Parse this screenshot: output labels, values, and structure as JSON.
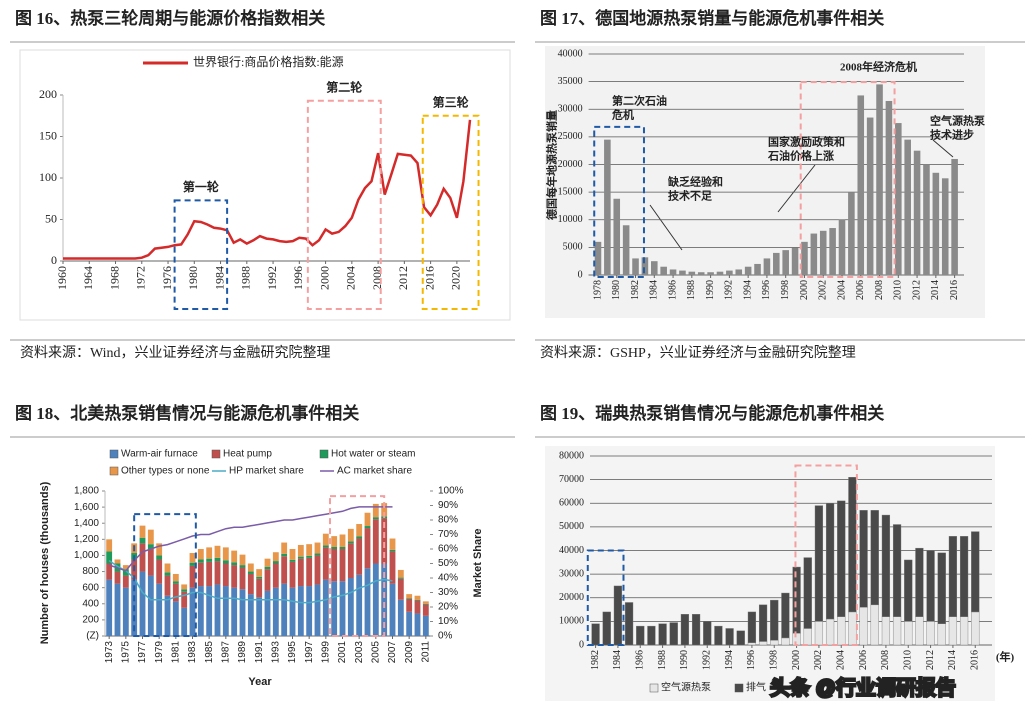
{
  "chart_data": [
    {
      "type": "line",
      "title": "图 16、热泵三轮周期与能源价格指数相关",
      "source": "资料来源：Wind，兴业证券经济与金融研究院整理",
      "x": [
        1960,
        1961,
        1962,
        1963,
        1964,
        1965,
        1966,
        1967,
        1968,
        1969,
        1970,
        1971,
        1972,
        1973,
        1974,
        1975,
        1976,
        1977,
        1978,
        1979,
        1980,
        1981,
        1982,
        1983,
        1984,
        1985,
        1986,
        1987,
        1988,
        1989,
        1990,
        1991,
        1992,
        1993,
        1994,
        1995,
        1996,
        1997,
        1998,
        1999,
        2000,
        2001,
        2002,
        2003,
        2004,
        2005,
        2006,
        2007,
        2008,
        2009,
        2010,
        2011,
        2012,
        2013,
        2014,
        2015,
        2016,
        2017,
        2018,
        2019,
        2020,
        2021,
        2022
      ],
      "series": [
        {
          "name": "世界银行:商品价格指数:能源",
          "color": "#d42a2a",
          "values": [
            3,
            3,
            3,
            3,
            3,
            3,
            3,
            3,
            3,
            3,
            3,
            3,
            4,
            7,
            15,
            16,
            17,
            19,
            20,
            32,
            48,
            47,
            44,
            40,
            39,
            37,
            22,
            26,
            21,
            25,
            30,
            27,
            26,
            24,
            23,
            24,
            28,
            27,
            19,
            25,
            38,
            33,
            35,
            42,
            52,
            74,
            88,
            96,
            130,
            80,
            104,
            129,
            128,
            127,
            118,
            65,
            55,
            68,
            87,
            76,
            52,
            96,
            170
          ]
        }
      ],
      "xlim": [
        1960,
        2022
      ],
      "xticks": [
        1960,
        1964,
        1968,
        1972,
        1976,
        1980,
        1984,
        1988,
        1992,
        1996,
        2000,
        2004,
        2008,
        2012,
        2016,
        2020
      ],
      "ylim": [
        0,
        200
      ],
      "yticks": [
        0,
        50,
        100,
        150,
        200
      ],
      "grid": false,
      "highlights": [
        {
          "label": "第一轮",
          "color": "#1f5aa6",
          "x": [
            1977,
            1985
          ],
          "top": 73
        },
        {
          "label": "第二轮",
          "color": "#f4a0a0",
          "x": [
            1997.3,
            2008.4
          ],
          "top": 193
        },
        {
          "label": "第三轮",
          "color": "#f5b800",
          "x": [
            2014.8,
            2023.3
          ],
          "top": 175
        }
      ]
    },
    {
      "type": "bar",
      "title": "图 17、德国地源热泵销量与能源危机事件相关",
      "source": "资料来源：GSHP，兴业证券经济与金融研究院整理",
      "ylabel": "德国每年地源热泵销量",
      "x": [
        1978,
        1979,
        1980,
        1981,
        1982,
        1983,
        1984,
        1985,
        1986,
        1987,
        1988,
        1989,
        1990,
        1991,
        1992,
        1993,
        1994,
        1995,
        1996,
        1997,
        1998,
        1999,
        2000,
        2001,
        2002,
        2003,
        2004,
        2005,
        2006,
        2007,
        2008,
        2009,
        2010,
        2011,
        2012,
        2013,
        2014,
        2015,
        2016
      ],
      "values": [
        6000,
        24500,
        13800,
        9000,
        3000,
        3200,
        2500,
        1500,
        1000,
        800,
        600,
        500,
        500,
        600,
        800,
        1000,
        1500,
        2000,
        3000,
        4000,
        4500,
        5000,
        6000,
        7500,
        8000,
        8500,
        10000,
        15000,
        32500,
        28500,
        34500,
        31500,
        27500,
        24500,
        22500,
        20000,
        18500,
        17500,
        21000
      ],
      "color": "#8a8a8a",
      "xlim": [
        1977,
        2017
      ],
      "xticks": [
        1978,
        1980,
        1982,
        1984,
        1986,
        1988,
        1990,
        1992,
        1994,
        1996,
        1998,
        2000,
        2002,
        2004,
        2006,
        2008,
        2010,
        2012,
        2014,
        2016
      ],
      "ylim": [
        0,
        40000
      ],
      "yticks": [
        0,
        5000,
        10000,
        15000,
        20000,
        25000,
        30000,
        35000,
        40000
      ],
      "grid": true,
      "annotations": [
        {
          "text": [
            "第二次石油",
            "危机"
          ]
        },
        {
          "text": [
            "2008年经济危机"
          ]
        },
        {
          "text": [
            "国家激励政策和",
            "石油价格上涨"
          ]
        },
        {
          "text": [
            "缺乏经验和",
            "技术不足"
          ]
        },
        {
          "text": [
            "空气源热泵",
            "技术进步"
          ]
        }
      ],
      "highlights": [
        {
          "color": "#1f5aa6",
          "x": [
            1977.6,
            1982.9
          ],
          "top": 26800
        },
        {
          "color": "#f4a0a0",
          "x": [
            1999.6,
            2009.6
          ],
          "top": 34900
        }
      ]
    },
    {
      "type": "bar",
      "title": "图 18、北美热泵销售情况与能源危机事件相关",
      "stacked": true,
      "ylabel": "Number of houses (thousands)",
      "y2label": "Market Share",
      "xlabel": "Year",
      "x": [
        1973,
        1974,
        1975,
        1976,
        1977,
        1978,
        1979,
        1980,
        1981,
        1982,
        1983,
        1984,
        1985,
        1986,
        1987,
        1988,
        1989,
        1990,
        1991,
        1992,
        1993,
        1994,
        1995,
        1996,
        1997,
        1998,
        1999,
        2000,
        2001,
        2002,
        2003,
        2004,
        2005,
        2006,
        2007,
        2008,
        2009,
        2010,
        2011
      ],
      "series": [
        {
          "name": "Warm-air furnace",
          "color": "#4f81bd",
          "values": [
            700,
            650,
            600,
            700,
            800,
            750,
            650,
            500,
            430,
            350,
            600,
            620,
            620,
            640,
            620,
            600,
            580,
            520,
            480,
            560,
            600,
            650,
            600,
            620,
            620,
            640,
            700,
            680,
            680,
            720,
            760,
            840,
            900,
            900,
            650,
            450,
            300,
            280,
            250
          ]
        },
        {
          "name": "Heat pump",
          "color": "#c0504d",
          "values": [
            200,
            150,
            150,
            250,
            350,
            330,
            300,
            250,
            220,
            200,
            270,
            290,
            300,
            290,
            280,
            280,
            270,
            250,
            230,
            270,
            300,
            340,
            320,
            340,
            350,
            360,
            400,
            400,
            400,
            430,
            450,
            500,
            550,
            560,
            400,
            260,
            160,
            160,
            140
          ]
        },
        {
          "name": "Hot water or steam",
          "color": "#1e9a5a",
          "values": [
            150,
            100,
            80,
            80,
            70,
            60,
            50,
            40,
            30,
            30,
            40,
            40,
            40,
            40,
            40,
            35,
            30,
            30,
            25,
            30,
            30,
            30,
            25,
            25,
            25,
            25,
            25,
            25,
            25,
            25,
            25,
            25,
            25,
            25,
            20,
            15,
            10,
            10,
            10
          ]
        },
        {
          "name": "Other types or none",
          "color": "#e8964a",
          "values": [
            150,
            50,
            50,
            120,
            150,
            180,
            150,
            110,
            90,
            60,
            120,
            130,
            140,
            150,
            160,
            145,
            130,
            100,
            95,
            100,
            110,
            140,
            135,
            145,
            145,
            135,
            145,
            135,
            155,
            155,
            155,
            165,
            165,
            165,
            140,
            95,
            50,
            50,
            30
          ]
        },
        {
          "name": "HP market share",
          "color": "#4bacc6",
          "type": "line",
          "axis": "y2",
          "values": [
            52,
            48,
            45,
            40,
            30,
            25,
            25,
            25,
            27,
            28,
            30,
            30,
            28,
            26,
            26,
            26,
            25,
            25,
            25,
            25,
            25,
            25,
            24,
            23,
            23,
            24,
            25,
            27,
            28,
            30,
            33,
            35,
            38,
            39,
            38,
            null,
            null,
            null,
            null
          ]
        },
        {
          "name": "AC market share",
          "color": "#7a5ca8",
          "type": "line",
          "axis": "y2",
          "values": [
            49,
            47,
            45,
            52,
            58,
            60,
            62,
            63,
            65,
            67,
            69,
            70,
            70,
            72,
            74,
            75,
            75,
            76,
            77,
            78,
            79,
            80,
            80,
            81,
            82,
            83,
            84,
            85,
            86,
            88,
            89,
            89,
            89,
            89,
            89,
            null,
            null,
            null,
            null
          ]
        }
      ],
      "xlim": [
        1972.5,
        2011.5
      ],
      "xticks": [
        1973,
        1975,
        1977,
        1979,
        1981,
        1983,
        1985,
        1987,
        1989,
        1991,
        1993,
        1995,
        1997,
        1999,
        2001,
        2003,
        2005,
        2007,
        2009,
        2011
      ],
      "ylim": [
        0,
        1800
      ],
      "yticks": [
        {
          "value": 0,
          "label": "(Z)"
        },
        200,
        400,
        600,
        800,
        {
          "value": 1000,
          "label": "1,000"
        },
        {
          "value": 1200,
          "label": "1,200"
        },
        {
          "value": 1400,
          "label": "1,400"
        },
        {
          "value": 1600,
          "label": "1,600"
        },
        {
          "value": 1800,
          "label": "1,800"
        }
      ],
      "y2lim": [
        0,
        100
      ],
      "y2ticks": [
        {
          "value": 0,
          "label": "0%"
        },
        {
          "value": 10,
          "label": "10%"
        },
        {
          "value": 20,
          "label": "20%"
        },
        {
          "value": 30,
          "label": "30%"
        },
        {
          "value": 40,
          "label": "40%"
        },
        {
          "value": 50,
          "label": "50%"
        },
        {
          "value": 60,
          "label": "60%"
        },
        {
          "value": 70,
          "label": "70%"
        },
        {
          "value": 80,
          "label": "80%"
        },
        {
          "value": 90,
          "label": "90%"
        },
        {
          "value": 100,
          "label": "100%"
        }
      ],
      "grid": false,
      "highlights": [
        {
          "color": "#1f5aa6",
          "x": [
            1976,
            1983.4
          ],
          "top": 1513
        },
        {
          "color": "#f4a0a0",
          "x": [
            1999.5,
            2006
          ],
          "top": 1736
        }
      ]
    },
    {
      "type": "bar",
      "title": "图 19、瑞典热泵销售情况与能源危机事件相关",
      "stacked": true,
      "xlabel": "(年)",
      "x": [
        1982,
        1983,
        1984,
        1985,
        1986,
        1987,
        1988,
        1989,
        1990,
        1991,
        1992,
        1993,
        1994,
        1995,
        1996,
        1997,
        1998,
        1999,
        2000,
        2001,
        2002,
        2003,
        2004,
        2005,
        2006,
        2007,
        2008,
        2009,
        2010,
        2011,
        2012,
        2013,
        2014,
        2015,
        2016
      ],
      "series": [
        {
          "name": "空气源热泵",
          "color": "#e6e6e6",
          "values": [
            0,
            0,
            0,
            0,
            0,
            0,
            0,
            0,
            0,
            0,
            0,
            0,
            0,
            0,
            1000,
            1500,
            2000,
            3000,
            5000,
            7000,
            10000,
            11000,
            12000,
            14000,
            16000,
            17000,
            12000,
            12000,
            10000,
            12000,
            10000,
            9000,
            12000,
            12000,
            14000
          ]
        },
        {
          "name": "排气",
          "color": "#4a4a4a",
          "values": [
            9000,
            14000,
            25000,
            18000,
            8000,
            8000,
            9000,
            9500,
            13000,
            13000,
            10000,
            8000,
            7000,
            6000,
            13000,
            15500,
            17000,
            19000,
            28000,
            30000,
            49000,
            49000,
            49000,
            57000,
            41000,
            40000,
            43000,
            39000,
            26000,
            29000,
            30000,
            30000,
            34000,
            34000,
            34000
          ]
        }
      ],
      "xlim": [
        1981.5,
        2017.5
      ],
      "xticks": [
        1982,
        1984,
        1986,
        1988,
        1990,
        1992,
        1994,
        1996,
        1998,
        2000,
        2002,
        2004,
        2006,
        2008,
        2010,
        2012,
        2014,
        2016
      ],
      "ylim": [
        0,
        80000
      ],
      "yticks": [
        0,
        10000,
        20000,
        30000,
        40000,
        50000,
        60000,
        70000,
        80000
      ],
      "grid": true,
      "highlights": [
        {
          "color": "#1f5aa6",
          "x": [
            1981.3,
            1984.5
          ],
          "top": 40000
        },
        {
          "color": "#f4a0a0",
          "x": [
            1999.9,
            2005.4
          ],
          "top": 76000
        }
      ]
    }
  ],
  "watermark": "头条 @行业调研报告"
}
